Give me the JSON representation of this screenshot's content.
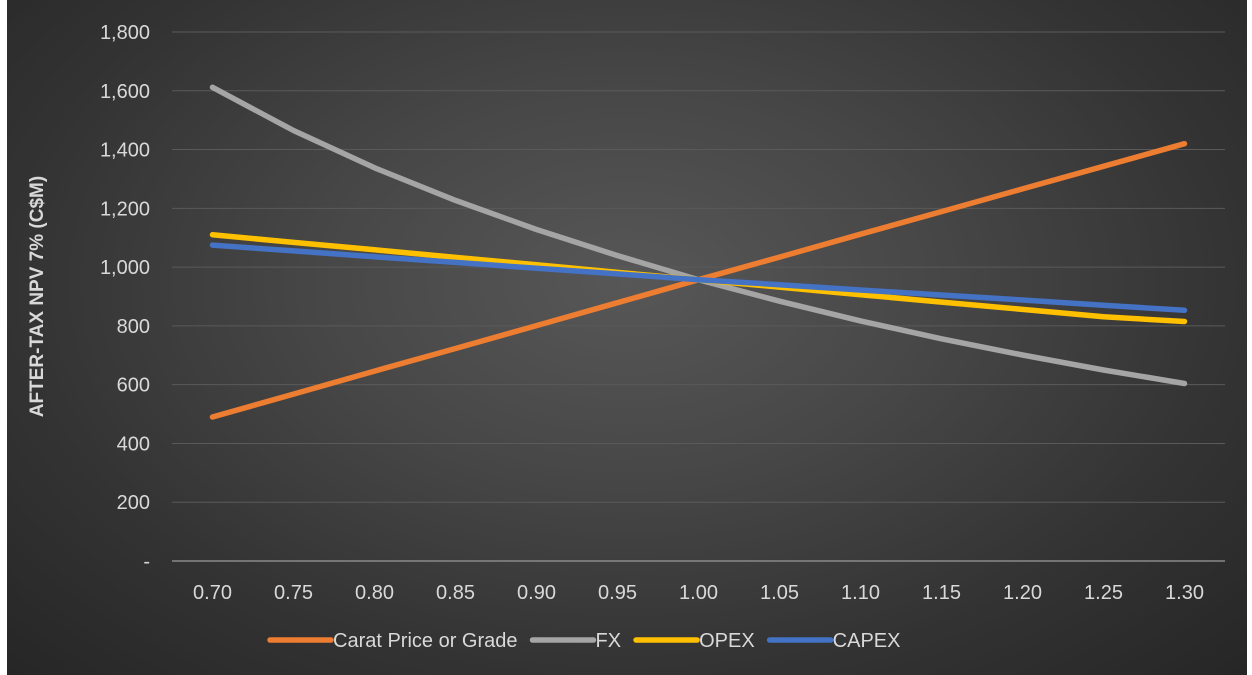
{
  "chart_data": {
    "type": "line",
    "title": "",
    "xlabel": "",
    "ylabel": "AFTER-TAX NPV 7% (C$M)",
    "x": [
      "0.70",
      "0.75",
      "0.80",
      "0.85",
      "0.90",
      "0.95",
      "1.00",
      "1.05",
      "1.10",
      "1.15",
      "1.20",
      "1.25",
      "1.30"
    ],
    "ylim": [
      0,
      1800
    ],
    "yticks": [
      0,
      200,
      400,
      600,
      800,
      1000,
      1200,
      1400,
      1600,
      1800
    ],
    "ytick_labels": [
      "-",
      "200",
      "400",
      "600",
      "800",
      "1,000",
      "1,200",
      "1,400",
      "1,600",
      "1,800"
    ],
    "grid": true,
    "legend": "bottom",
    "background": "#404040",
    "series": [
      {
        "name": "Carat Price or Grade",
        "color": "#ed7d31",
        "values": [
          490,
          568,
          646,
          723,
          801,
          879,
          957,
          1034,
          1112,
          1189,
          1266,
          1343,
          1420
        ]
      },
      {
        "name": "FX",
        "color": "#a5a5a5",
        "values": [
          1612,
          1465,
          1338,
          1227,
          1128,
          1039,
          957,
          884,
          817,
          756,
          701,
          650,
          604
        ]
      },
      {
        "name": "OPEX",
        "color": "#ffc000",
        "values": [
          1110,
          1084,
          1059,
          1033,
          1008,
          982,
          957,
          932,
          906,
          881,
          856,
          831,
          815
        ]
      },
      {
        "name": "CAPEX",
        "color": "#4472c4",
        "values": [
          1075,
          1055,
          1035,
          1016,
          996,
          977,
          957,
          940,
          922,
          905,
          888,
          870,
          853
        ]
      }
    ]
  }
}
